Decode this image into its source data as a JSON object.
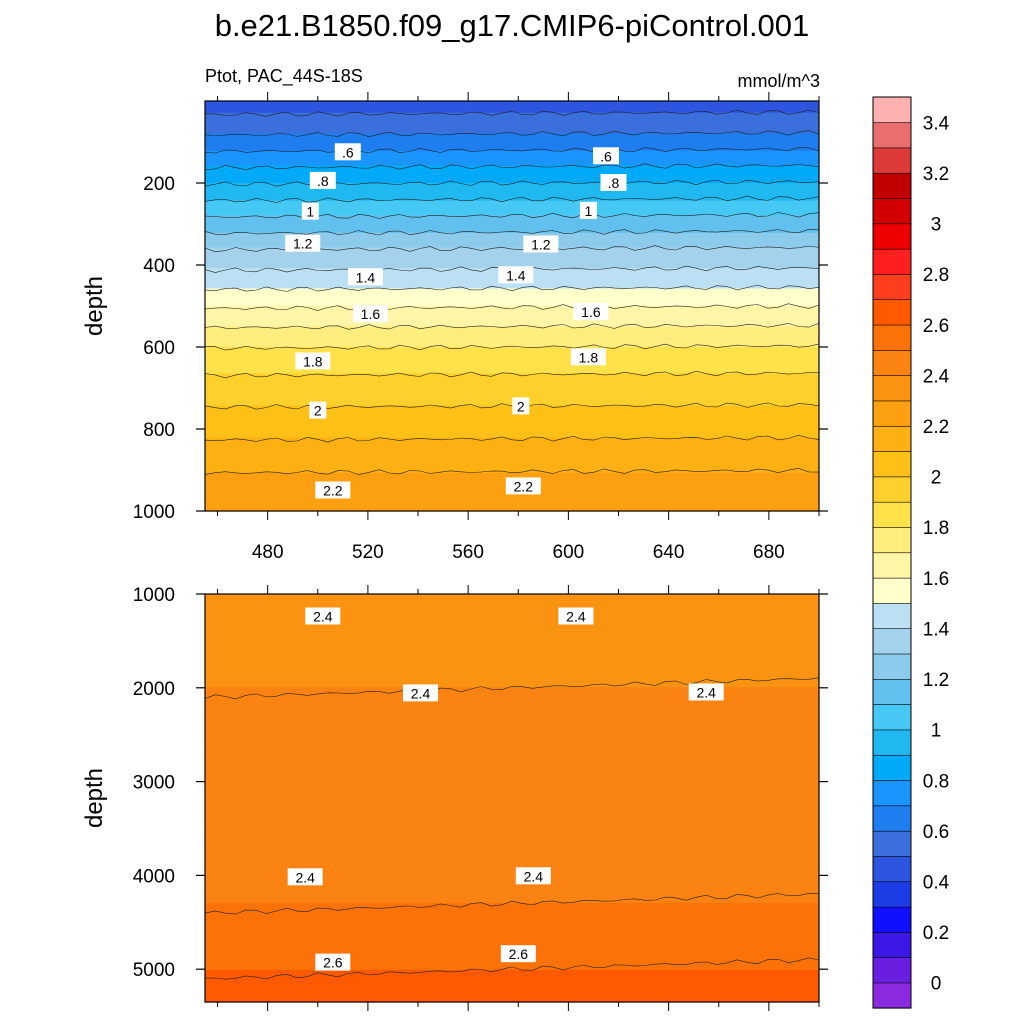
{
  "title": "b.e21.B1850.f09_g17.CMIP6-piControl.001",
  "chart_data": [
    {
      "type": "heatmap",
      "panel": "upper",
      "variable_label": "Ptot, PAC_44S-18S",
      "units": "mmol/m^3",
      "ylabel": "depth",
      "xlabel": "",
      "xlim": [
        455,
        700
      ],
      "ylim": [
        1000,
        0
      ],
      "x_ticks": [
        480,
        520,
        560,
        600,
        640,
        680
      ],
      "y_ticks": [
        200,
        400,
        600,
        800,
        1000
      ],
      "profile": {
        "depth": [
          0,
          60,
          120,
          180,
          240,
          300,
          360,
          420,
          480,
          540,
          600,
          680,
          760,
          840,
          920,
          1000
        ],
        "value": [
          0.45,
          0.55,
          0.7,
          0.85,
          1.0,
          1.15,
          1.3,
          1.42,
          1.55,
          1.68,
          1.8,
          1.92,
          2.02,
          2.12,
          2.22,
          2.28
        ]
      },
      "contour_labels": [
        {
          "text": ".6",
          "x": 512,
          "depth": 125
        },
        {
          "text": ".6",
          "x": 615,
          "depth": 135
        },
        {
          "text": ".8",
          "x": 502,
          "depth": 195
        },
        {
          "text": ".8",
          "x": 618,
          "depth": 200
        },
        {
          "text": "1",
          "x": 497,
          "depth": 270
        },
        {
          "text": "1",
          "x": 608,
          "depth": 268
        },
        {
          "text": "1.2",
          "x": 494,
          "depth": 348
        },
        {
          "text": "1.2",
          "x": 589,
          "depth": 350
        },
        {
          "text": "1.4",
          "x": 519,
          "depth": 430
        },
        {
          "text": "1.4",
          "x": 579,
          "depth": 425
        },
        {
          "text": "1.6",
          "x": 521,
          "depth": 520
        },
        {
          "text": "1.6",
          "x": 609,
          "depth": 515
        },
        {
          "text": "1.8",
          "x": 498,
          "depth": 635
        },
        {
          "text": "1.8",
          "x": 608,
          "depth": 625
        },
        {
          "text": "2",
          "x": 500,
          "depth": 755
        },
        {
          "text": "2",
          "x": 581,
          "depth": 745
        },
        {
          "text": "2.2",
          "x": 506,
          "depth": 950
        },
        {
          "text": "2.2",
          "x": 582,
          "depth": 940
        }
      ]
    },
    {
      "type": "heatmap",
      "panel": "lower",
      "ylabel": "depth",
      "xlim": [
        455,
        700
      ],
      "ylim": [
        5350,
        1000
      ],
      "y_ticks": [
        1000,
        2000,
        3000,
        4000,
        5000
      ],
      "profile": {
        "depth": [
          1000,
          2000,
          3000,
          4000,
          4500,
          5000,
          5350
        ],
        "value": [
          2.33,
          2.4,
          2.43,
          2.47,
          2.52,
          2.6,
          2.7
        ]
      },
      "contour_labels": [
        {
          "text": "2.4",
          "x": 502,
          "depth": 1240
        },
        {
          "text": "2.4",
          "x": 603,
          "depth": 1240
        },
        {
          "text": "2.4",
          "x": 541,
          "depth": 2060
        },
        {
          "text": "2.4",
          "x": 655,
          "depth": 2050
        },
        {
          "text": "2.4",
          "x": 495,
          "depth": 4020
        },
        {
          "text": "2.4",
          "x": 586,
          "depth": 4010
        },
        {
          "text": "2.6",
          "x": 506,
          "depth": 4930
        },
        {
          "text": "2.6",
          "x": 580,
          "depth": 4840
        }
      ]
    }
  ],
  "colorbar": {
    "labels": [
      "0",
      "0.2",
      "0.4",
      "0.6",
      "0.8",
      "1",
      "1.2",
      "1.4",
      "1.6",
      "1.8",
      "2",
      "2.2",
      "2.4",
      "2.6",
      "2.8",
      "3",
      "3.2",
      "3.4"
    ],
    "colors": [
      "#8a2be2",
      "#6a1fe0",
      "#3c17e6",
      "#1010ff",
      "#1e3ce6",
      "#2e55e0",
      "#3a6fdc",
      "#1e7ef0",
      "#1a94ff",
      "#00aaf8",
      "#20b8f0",
      "#46c8f4",
      "#62c0ee",
      "#8ccbeb",
      "#a4d2ec",
      "#bbe0f4",
      "#ffffcc",
      "#fff5a6",
      "#ffed7e",
      "#ffe24a",
      "#fdd02b",
      "#fcc016",
      "#fcb012",
      "#fca012",
      "#fa9212",
      "#fb8312",
      "#fb7209",
      "#ff5a00",
      "#ff3d1f",
      "#ff1f1f",
      "#ee0000",
      "#d20000",
      "#c10000",
      "#dd3a3a",
      "#ea6e6e",
      "#ffb0b0"
    ]
  }
}
